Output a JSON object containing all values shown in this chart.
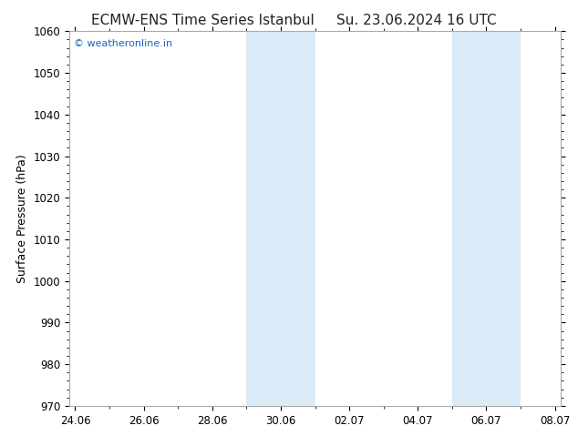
{
  "title_left": "ECMW-ENS Time Series Istanbul",
  "title_right": "Su. 23.06.2024 16 UTC",
  "ylabel": "Surface Pressure (hPa)",
  "ylim": [
    970,
    1060
  ],
  "yticks": [
    970,
    980,
    990,
    1000,
    1010,
    1020,
    1030,
    1040,
    1050,
    1060
  ],
  "xtick_labels": [
    "24.06",
    "26.06",
    "28.06",
    "30.06",
    "02.07",
    "04.07",
    "06.07",
    "08.07"
  ],
  "xtick_positions": [
    0,
    2,
    4,
    6,
    8,
    10,
    12,
    14
  ],
  "x_start": -0.17,
  "x_end": 14.17,
  "shaded_bands": [
    {
      "x_start": 5.0,
      "x_end": 6.0
    },
    {
      "x_start": 6.0,
      "x_end": 7.0
    },
    {
      "x_start": 11.0,
      "x_end": 12.0
    },
    {
      "x_start": 12.0,
      "x_end": 13.0
    }
  ],
  "shaded_color": "#daeaf6",
  "bg_color": "#ffffff",
  "plot_bg_color": "#ffffff",
  "border_color": "#aaaaaa",
  "watermark_text": "© weatheronline.in",
  "watermark_color": "#1565C0",
  "title_fontsize": 11,
  "label_fontsize": 9,
  "tick_fontsize": 8.5
}
